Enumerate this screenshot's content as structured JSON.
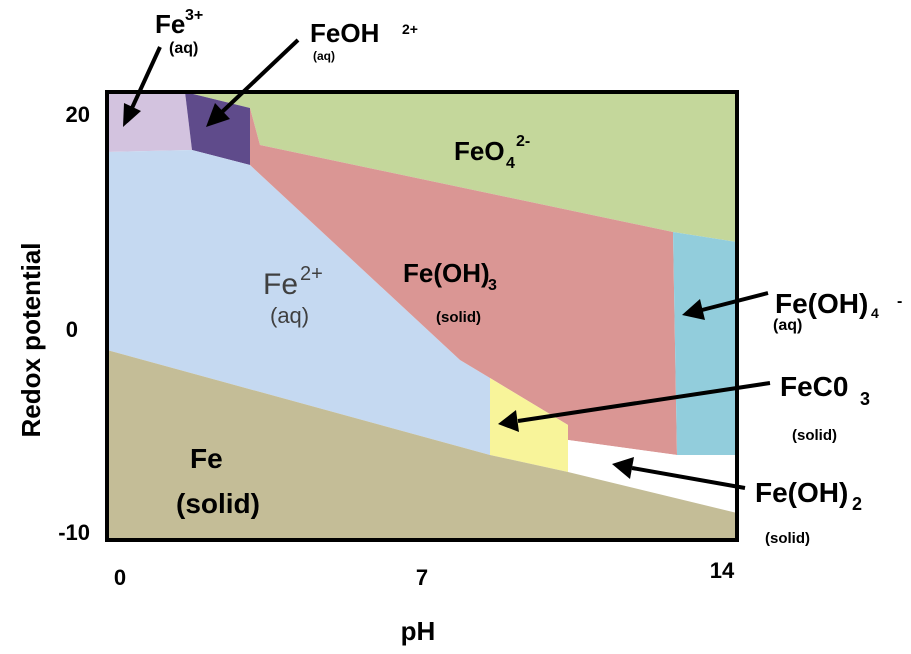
{
  "axes": {
    "y_label": "Redox potential",
    "x_label": "pH",
    "y_ticks": [
      "20",
      "0",
      "-10"
    ],
    "x_ticks": [
      "0",
      "7",
      "14"
    ]
  },
  "regions": {
    "fe3": {
      "main": "Fe",
      "sup": "3+",
      "sub": "(aq)",
      "color": "#d3c3df"
    },
    "feoh2": {
      "main": "FeOH",
      "sup": "2+",
      "sub": "(aq)",
      "color": "#5f4b8b"
    },
    "feo4": {
      "main": "FeO",
      "sub": "4",
      "sup": "2-",
      "color": "#c4d79b"
    },
    "fe2": {
      "main": "Fe",
      "sup": "2+",
      "sub": "(aq)",
      "color": "#c5d9f1"
    },
    "feoh3": {
      "main": "Fe(OH)",
      "sub": "3",
      "state": "(solid)",
      "color": "#da9694"
    },
    "feoh4": {
      "main": "Fe(OH)",
      "sub": "4",
      "sup": "-",
      "state": "(aq)",
      "color": "#92cddc"
    },
    "feco3": {
      "main": "FeC0",
      "sub": "3",
      "state": "(solid)",
      "color": "#f8f49a"
    },
    "feoh2s": {
      "main": "Fe(OH)",
      "sub": "2",
      "state": "(solid)",
      "color": "#ffffff"
    },
    "fe": {
      "main": "Fe",
      "state": "(solid)",
      "color": "#c4bd97"
    }
  },
  "border_color": "#000000"
}
